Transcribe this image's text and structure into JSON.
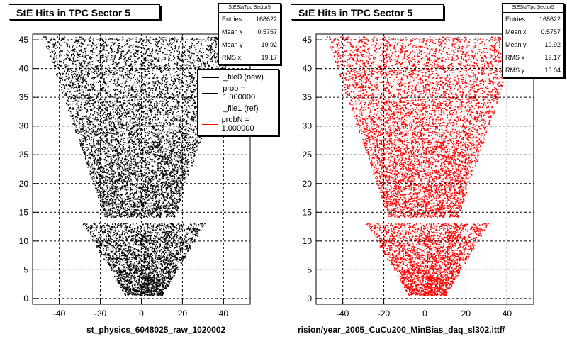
{
  "panels": [
    {
      "title": "StE Hits in TPC Sector 5",
      "color": "#000000",
      "stats": {
        "header": "StEStaTpc Sector5",
        "rows": [
          {
            "label": "Entries",
            "value": "168622"
          },
          {
            "label": "Mean x",
            "value": "0.5757"
          },
          {
            "label": "Mean y",
            "value": "19.92"
          },
          {
            "label": "RMS x",
            "value": "19.17"
          }
        ]
      },
      "legend": [
        {
          "label": "_file0 (new)",
          "color": "#000000"
        },
        {
          "label": "prob = 1.000000",
          "color": "#000000"
        },
        {
          "label": "_file1 (ref)",
          "color": "#ff0000"
        },
        {
          "label": "probN = 1.000000",
          "color": "#ff0000"
        }
      ],
      "footer": "st_physics_6048025_raw_1020002"
    },
    {
      "title": "StE Hits in TPC Sector 5",
      "color": "#ff0000",
      "stats": {
        "header": "StEStaTpc Sector5",
        "rows": [
          {
            "label": "Entries",
            "value": "168622"
          },
          {
            "label": "Mean x",
            "value": "0.5757"
          },
          {
            "label": "Mean y",
            "value": "19.92"
          },
          {
            "label": "RMS x",
            "value": "19.17"
          },
          {
            "label": "RMS y",
            "value": "13.04"
          }
        ]
      },
      "footer": "rision/year_2005_CuCu200_MinBias_daq_sl302.ittf/"
    }
  ],
  "chart_data": {
    "type": "scatter",
    "title": "StE Hits in TPC Sector 5",
    "xlim": [
      -53,
      53
    ],
    "ylim": [
      -1,
      46
    ],
    "xticks": [
      -40,
      -20,
      0,
      20,
      40
    ],
    "yticks": [
      0,
      5,
      10,
      15,
      20,
      25,
      30,
      35,
      40,
      45
    ],
    "grid": true,
    "entries": 168622,
    "mean_x": 0.5757,
    "mean_y": 19.92,
    "rms_x": 19.17,
    "rms_y": 13.04
  }
}
